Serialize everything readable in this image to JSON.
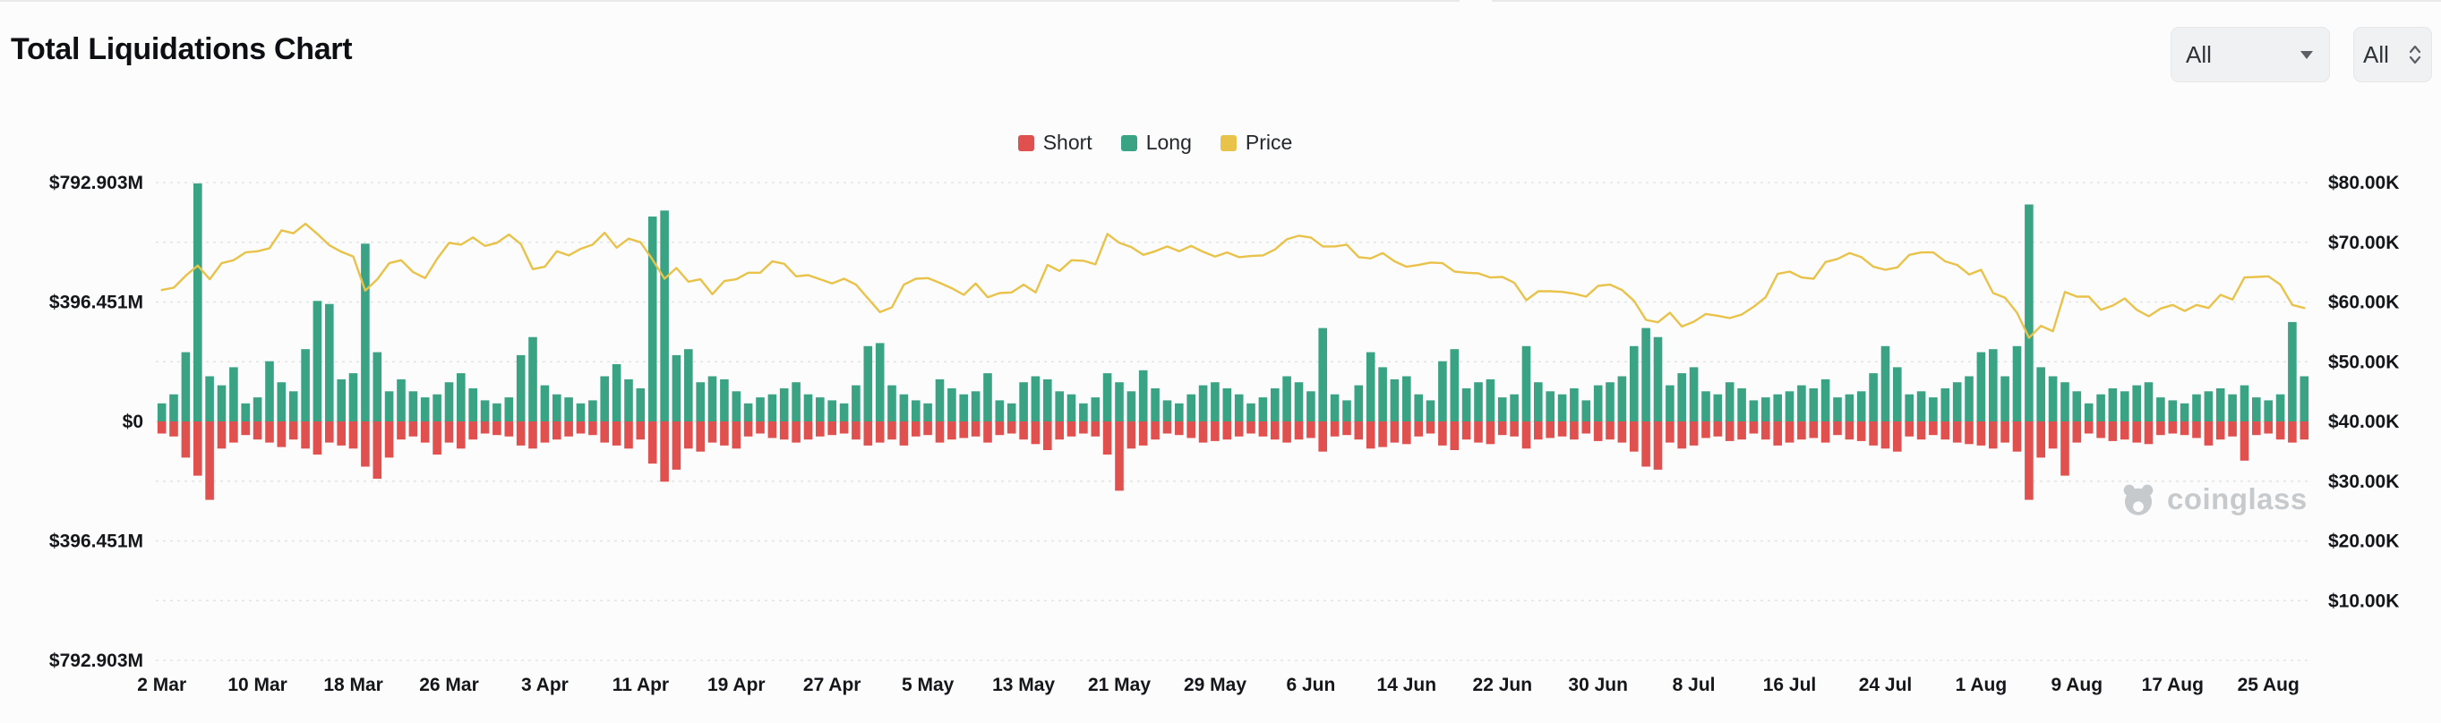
{
  "header": {
    "title": "Total Liquidations Chart"
  },
  "filters": {
    "symbol_dropdown": {
      "value": "All"
    },
    "range_dropdown": {
      "value": "All"
    }
  },
  "watermark": {
    "text": "coinglass"
  },
  "chart_data": {
    "type": "bar",
    "subtype": "mirrored-bars-with-line-overlay",
    "title": "Total Liquidations Chart",
    "grid": "dotted-horizontal",
    "legend_position": "top-center",
    "x_tick_step": 8,
    "x_tick_labels": [
      "2 Mar",
      "10 Mar",
      "18 Mar",
      "26 Mar",
      "3 Apr",
      "11 Apr",
      "19 Apr",
      "27 Apr",
      "5 May",
      "13 May",
      "21 May",
      "29 May",
      "6 Jun",
      "14 Jun",
      "22 Jun",
      "30 Jun",
      "8 Jul",
      "16 Jul",
      "24 Jul",
      "1 Aug",
      "9 Aug",
      "17 Aug",
      "25 Aug"
    ],
    "y_left_axis": {
      "labels": [
        "$792.903M",
        "$396.451M",
        "$0",
        "$396.451M",
        "$792.903M"
      ],
      "max": 792.903,
      "unit": "M USD"
    },
    "y_right_axis": {
      "labels": [
        "$80.00K",
        "$70.00K",
        "$60.00K",
        "$50.00K",
        "$40.00K",
        "$30.00K",
        "$20.00K",
        "$10.00K"
      ],
      "min": 0,
      "max": 80,
      "unit": "K USD"
    },
    "series": [
      {
        "name": "Short",
        "type": "bar",
        "direction": "down",
        "axis": "left",
        "color": "#e0504f",
        "values": [
          40,
          50,
          120,
          180,
          260,
          90,
          70,
          45,
          60,
          70,
          85,
          60,
          90,
          110,
          70,
          80,
          90,
          150,
          190,
          120,
          60,
          50,
          70,
          110,
          70,
          90,
          60,
          40,
          45,
          50,
          80,
          90,
          70,
          60,
          50,
          40,
          45,
          70,
          80,
          90,
          60,
          140,
          200,
          160,
          90,
          100,
          70,
          80,
          90,
          50,
          40,
          55,
          60,
          70,
          60,
          50,
          45,
          40,
          60,
          80,
          70,
          60,
          80,
          50,
          45,
          70,
          60,
          55,
          50,
          70,
          45,
          40,
          60,
          75,
          95,
          60,
          50,
          40,
          50,
          110,
          230,
          90,
          80,
          60,
          40,
          45,
          55,
          70,
          65,
          60,
          50,
          40,
          50,
          60,
          70,
          60,
          55,
          100,
          50,
          45,
          60,
          90,
          85,
          70,
          75,
          50,
          40,
          80,
          95,
          60,
          70,
          75,
          45,
          50,
          90,
          60,
          55,
          50,
          60,
          40,
          65,
          60,
          70,
          100,
          150,
          160,
          70,
          90,
          80,
          55,
          50,
          65,
          60,
          40,
          60,
          80,
          70,
          60,
          55,
          70,
          45,
          60,
          65,
          80,
          90,
          100,
          50,
          60,
          45,
          60,
          70,
          75,
          80,
          90,
          70,
          100,
          260,
          120,
          90,
          180,
          70,
          40,
          55,
          65,
          60,
          70,
          75,
          45,
          40,
          45,
          55,
          80,
          60,
          50,
          130,
          45,
          40,
          60,
          70,
          60
        ]
      },
      {
        "name": "Long",
        "type": "bar",
        "direction": "up",
        "axis": "left",
        "color": "#3aa384",
        "values": [
          60,
          90,
          230,
          790,
          150,
          120,
          180,
          60,
          80,
          200,
          130,
          100,
          240,
          400,
          390,
          140,
          160,
          590,
          230,
          100,
          140,
          100,
          80,
          90,
          130,
          160,
          110,
          70,
          60,
          80,
          220,
          280,
          120,
          90,
          80,
          60,
          70,
          150,
          190,
          140,
          110,
          680,
          700,
          220,
          240,
          130,
          150,
          140,
          100,
          60,
          80,
          90,
          110,
          130,
          90,
          80,
          70,
          60,
          120,
          250,
          260,
          120,
          90,
          70,
          60,
          140,
          110,
          90,
          100,
          160,
          70,
          60,
          130,
          150,
          140,
          100,
          90,
          60,
          80,
          160,
          130,
          100,
          170,
          110,
          70,
          60,
          90,
          120,
          130,
          110,
          90,
          60,
          80,
          110,
          150,
          130,
          100,
          310,
          90,
          70,
          120,
          230,
          180,
          140,
          150,
          90,
          70,
          200,
          240,
          110,
          130,
          140,
          80,
          90,
          250,
          130,
          100,
          90,
          110,
          70,
          120,
          130,
          150,
          250,
          310,
          280,
          120,
          160,
          180,
          100,
          90,
          130,
          110,
          70,
          80,
          90,
          100,
          120,
          110,
          140,
          80,
          90,
          100,
          160,
          250,
          180,
          90,
          100,
          80,
          110,
          130,
          150,
          230,
          240,
          150,
          250,
          720,
          180,
          150,
          130,
          100,
          60,
          90,
          110,
          100,
          120,
          130,
          80,
          70,
          60,
          90,
          100,
          110,
          90,
          120,
          80,
          70,
          90,
          330,
          150
        ]
      },
      {
        "name": "Price",
        "type": "line",
        "axis": "right",
        "color": "#e9c24a",
        "values": [
          62.0,
          62.4,
          64.4,
          66.1,
          63.8,
          66.5,
          67.0,
          68.3,
          68.5,
          69.0,
          72.0,
          71.5,
          73.1,
          71.4,
          69.5,
          68.4,
          67.6,
          61.9,
          63.8,
          66.5,
          67.0,
          65.0,
          64.0,
          67.2,
          69.9,
          69.6,
          70.8,
          69.4,
          69.9,
          71.3,
          69.7,
          65.5,
          65.9,
          68.5,
          67.8,
          68.9,
          69.6,
          71.6,
          69.1,
          70.6,
          70.0,
          67.1,
          63.9,
          65.7,
          63.4,
          63.8,
          61.3,
          63.5,
          63.8,
          64.9,
          64.9,
          66.8,
          66.4,
          64.3,
          64.5,
          63.8,
          63.1,
          63.9,
          62.9,
          60.6,
          58.3,
          59.1,
          62.9,
          63.9,
          64.0,
          63.2,
          62.3,
          61.2,
          63.1,
          60.8,
          61.5,
          61.6,
          62.9,
          61.6,
          66.2,
          65.2,
          67.0,
          66.9,
          66.3,
          71.4,
          69.9,
          69.2,
          67.9,
          68.5,
          69.3,
          68.5,
          69.4,
          68.4,
          67.6,
          68.3,
          67.5,
          67.7,
          67.8,
          68.8,
          70.5,
          71.1,
          70.8,
          69.3,
          69.3,
          69.6,
          67.5,
          67.3,
          68.2,
          66.8,
          65.9,
          66.2,
          66.6,
          66.5,
          65.1,
          64.9,
          64.8,
          64.1,
          64.2,
          63.2,
          60.3,
          61.8,
          61.8,
          61.7,
          61.4,
          60.9,
          62.7,
          62.9,
          62.0,
          60.2,
          57.0,
          56.6,
          58.2,
          55.9,
          56.7,
          58.0,
          57.7,
          57.3,
          57.9,
          59.2,
          60.8,
          64.7,
          65.1,
          64.1,
          63.9,
          66.7,
          67.2,
          68.2,
          67.5,
          65.9,
          65.4,
          65.8,
          67.9,
          68.3,
          68.3,
          66.8,
          66.2,
          64.6,
          65.4,
          61.5,
          60.7,
          58.2,
          54.0,
          56.0,
          55.1,
          61.7,
          60.9,
          60.9,
          58.7,
          59.4,
          60.6,
          58.7,
          57.6,
          58.9,
          59.5,
          58.5,
          59.5,
          59.0,
          61.2,
          60.4,
          64.1,
          64.2,
          64.3,
          62.9,
          59.5,
          59.0
        ]
      }
    ]
  }
}
